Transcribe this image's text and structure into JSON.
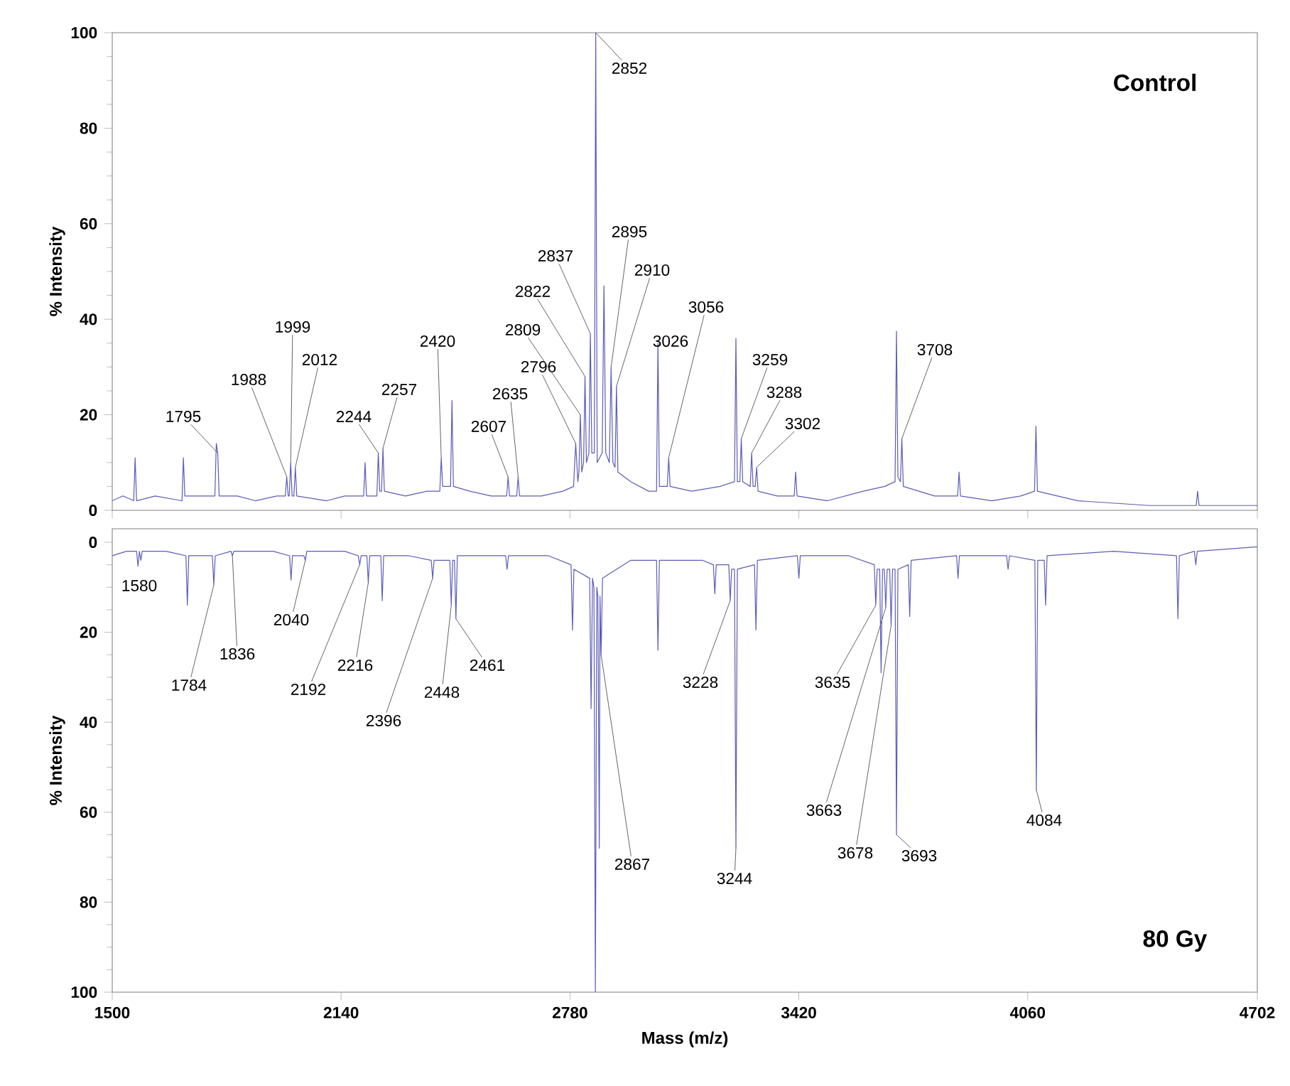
{
  "chart_data": [
    {
      "type": "line",
      "title": "Control",
      "ylabel": "% Intensity",
      "xlim": [
        1500,
        4702
      ],
      "xticks": [
        1500,
        2140,
        2780,
        3420,
        4060,
        4702
      ],
      "ylim": [
        0,
        100
      ],
      "yticks": [
        0,
        20,
        40,
        60,
        80,
        100
      ],
      "tick_labels": "y",
      "legend": false,
      "series": [
        {
          "color": "#5c5cb8",
          "x": [
            1500,
            1530,
            1560,
            1564,
            1568,
            1620,
            1695,
            1699,
            1703,
            1760,
            1787,
            1791,
            1795,
            1799,
            1850,
            1900,
            1960,
            1984,
            1988,
            1992,
            1995,
            1999,
            2003,
            2008,
            2012,
            2016,
            2100,
            2150,
            2203,
            2207,
            2211,
            2240,
            2244,
            2248,
            2253,
            2257,
            2261,
            2320,
            2380,
            2416,
            2420,
            2424,
            2446,
            2450,
            2454,
            2500,
            2560,
            2603,
            2607,
            2611,
            2631,
            2635,
            2639,
            2700,
            2760,
            2790,
            2796,
            2802,
            2805,
            2809,
            2813,
            2818,
            2822,
            2826,
            2833,
            2837,
            2841,
            2848,
            2852,
            2856,
            2870,
            2875,
            2880,
            2890,
            2895,
            2900,
            2906,
            2910,
            2914,
            2950,
            3000,
            3022,
            3026,
            3030,
            3052,
            3056,
            3060,
            3120,
            3200,
            3240,
            3244,
            3248,
            3255,
            3259,
            3263,
            3284,
            3288,
            3292,
            3298,
            3302,
            3306,
            3360,
            3407,
            3411,
            3415,
            3500,
            3600,
            3660,
            3689,
            3693,
            3697,
            3704,
            3708,
            3712,
            3800,
            3864,
            3868,
            3872,
            3960,
            4040,
            4079,
            4083,
            4087,
            4200,
            4400,
            4531,
            4535,
            4539,
            4702
          ],
          "values": [
            2,
            3,
            2,
            11,
            2,
            3,
            2,
            11,
            3,
            3,
            3,
            14,
            12,
            3,
            3,
            2,
            3,
            3,
            7,
            3,
            3,
            10,
            3,
            3,
            9,
            3,
            2,
            3,
            3,
            10,
            3,
            3,
            12,
            4,
            4,
            13,
            4,
            3,
            4,
            4,
            11,
            5,
            5,
            23,
            5,
            4,
            3,
            3,
            7,
            3,
            3,
            7,
            3,
            3,
            4,
            5,
            14,
            6,
            8,
            20,
            8,
            10,
            28,
            10,
            12,
            37,
            12,
            12,
            100,
            10,
            12,
            47,
            12,
            10,
            30,
            10,
            9,
            26,
            8,
            6,
            4,
            4,
            35,
            5,
            5,
            11,
            5,
            4,
            5,
            6,
            36,
            6,
            6,
            15,
            6,
            5,
            12,
            5,
            5,
            9,
            4,
            3,
            3,
            8,
            3,
            2,
            4,
            5,
            6,
            37.5,
            7,
            6,
            15,
            5,
            3,
            3,
            8,
            3,
            2,
            3,
            4,
            17.6,
            4,
            2,
            1,
            1,
            4,
            1,
            1
          ]
        }
      ],
      "annotations": [
        {
          "text": "2852",
          "x": 2852,
          "y": 100
        },
        {
          "text": "1795",
          "x": 1795,
          "y": 12
        },
        {
          "text": "1988",
          "x": 1988,
          "y": 7
        },
        {
          "text": "1999",
          "x": 1999,
          "y": 10
        },
        {
          "text": "2012",
          "x": 2012,
          "y": 9
        },
        {
          "text": "2244",
          "x": 2244,
          "y": 12
        },
        {
          "text": "2257",
          "x": 2257,
          "y": 13
        },
        {
          "text": "2420",
          "x": 2420,
          "y": 11
        },
        {
          "text": "2607",
          "x": 2607,
          "y": 7
        },
        {
          "text": "2635",
          "x": 2635,
          "y": 7
        },
        {
          "text": "2796",
          "x": 2796,
          "y": 14
        },
        {
          "text": "2809",
          "x": 2809,
          "y": 20
        },
        {
          "text": "2822",
          "x": 2822,
          "y": 28
        },
        {
          "text": "2837",
          "x": 2837,
          "y": 37
        },
        {
          "text": "2895",
          "x": 2895,
          "y": 30
        },
        {
          "text": "2910",
          "x": 2910,
          "y": 26
        },
        {
          "text": "3026",
          "x": 3026,
          "y": 35
        },
        {
          "text": "3056",
          "x": 3056,
          "y": 11
        },
        {
          "text": "3259",
          "x": 3259,
          "y": 15
        },
        {
          "text": "3288",
          "x": 3288,
          "y": 12
        },
        {
          "text": "3302",
          "x": 3302,
          "y": 9
        },
        {
          "text": "3708",
          "x": 3708,
          "y": 15
        }
      ]
    },
    {
      "type": "line",
      "title": "80 Gy",
      "xlabel": "Mass (m/z)",
      "ylabel": "% Intensity",
      "xlim": [
        1500,
        4702
      ],
      "xticks": [
        1500,
        2140,
        2780,
        3420,
        4060,
        4702
      ],
      "ylim": [
        100,
        -3
      ],
      "yticks": [
        0,
        20,
        40,
        60,
        80,
        100
      ],
      "legend": false,
      "series": [
        {
          "color": "#5c5cb8",
          "x": [
            1500,
            1540,
            1568,
            1572,
            1576,
            1580,
            1584,
            1650,
            1706,
            1710,
            1714,
            1750,
            1780,
            1784,
            1788,
            1832,
            1836,
            1840,
            1950,
            1996,
            2000,
            2004,
            2036,
            2040,
            2044,
            2150,
            2188,
            2192,
            2196,
            2212,
            2216,
            2220,
            2251,
            2255,
            2259,
            2330,
            2392,
            2396,
            2400,
            2444,
            2448,
            2452,
            2457,
            2461,
            2465,
            2600,
            2604,
            2608,
            2720,
            2783,
            2787,
            2791,
            2835,
            2839,
            2843,
            2847,
            2851,
            2855,
            2858,
            2862,
            2864,
            2867,
            2871,
            2950,
            3022,
            3026,
            3030,
            3150,
            3181,
            3185,
            3189,
            3224,
            3228,
            3232,
            3240,
            3244,
            3248,
            3296,
            3300,
            3304,
            3416,
            3420,
            3424,
            3560,
            3631,
            3635,
            3639,
            3646,
            3650,
            3654,
            3659,
            3663,
            3667,
            3674,
            3678,
            3682,
            3689,
            3693,
            3697,
            3726,
            3730,
            3734,
            3861,
            3865,
            3869,
            3950,
            4001,
            4005,
            4009,
            4080,
            4084,
            4088,
            4106,
            4110,
            4114,
            4300,
            4476,
            4480,
            4484,
            4526,
            4530,
            4534,
            4702
          ],
          "values": [
            3,
            2,
            2,
            5.3,
            2,
            4,
            2,
            2,
            3,
            14,
            3,
            3,
            3,
            9.5,
            3,
            2,
            3,
            2,
            2,
            3,
            8.4,
            3,
            3,
            4,
            2,
            2,
            3,
            5,
            3,
            3,
            9,
            3,
            3,
            13,
            3,
            3,
            4,
            8,
            4,
            4,
            14,
            4,
            4,
            17,
            3,
            3,
            6,
            3,
            3,
            5,
            19.5,
            6,
            8,
            37,
            8,
            10,
            100,
            10,
            12,
            68,
            12,
            25,
            8,
            4,
            4,
            24,
            4,
            4,
            5,
            11.5,
            5,
            5,
            13,
            6,
            6,
            68,
            6,
            5,
            19.5,
            4,
            3,
            8,
            3,
            3,
            5,
            14,
            6,
            6,
            29,
            6,
            6,
            14.5,
            6,
            6,
            18.5,
            6,
            6,
            65,
            6,
            5,
            16.5,
            4,
            3,
            8,
            3,
            3,
            3,
            6,
            3,
            4,
            55,
            4,
            4,
            14,
            3,
            2,
            3,
            17,
            3,
            2,
            5,
            2,
            1
          ]
        }
      ],
      "annotations": [
        {
          "text": "1580",
          "x": 1580,
          "y": 4
        },
        {
          "text": "1784",
          "x": 1784,
          "y": 9.5
        },
        {
          "text": "1836",
          "x": 1836,
          "y": 3
        },
        {
          "text": "2040",
          "x": 2040,
          "y": 4
        },
        {
          "text": "2192",
          "x": 2192,
          "y": 5
        },
        {
          "text": "2216",
          "x": 2216,
          "y": 9
        },
        {
          "text": "2396",
          "x": 2396,
          "y": 8
        },
        {
          "text": "2448",
          "x": 2448,
          "y": 14
        },
        {
          "text": "2461",
          "x": 2461,
          "y": 17
        },
        {
          "text": "2867",
          "x": 2867,
          "y": 25
        },
        {
          "text": "3228",
          "x": 3228,
          "y": 13
        },
        {
          "text": "3244",
          "x": 3244,
          "y": 68
        },
        {
          "text": "3635",
          "x": 3635,
          "y": 14
        },
        {
          "text": "3663",
          "x": 3663,
          "y": 14.5
        },
        {
          "text": "3678",
          "x": 3678,
          "y": 18.5
        },
        {
          "text": "3693",
          "x": 3693,
          "y": 65
        },
        {
          "text": "4084",
          "x": 4084,
          "y": 55
        }
      ]
    }
  ]
}
